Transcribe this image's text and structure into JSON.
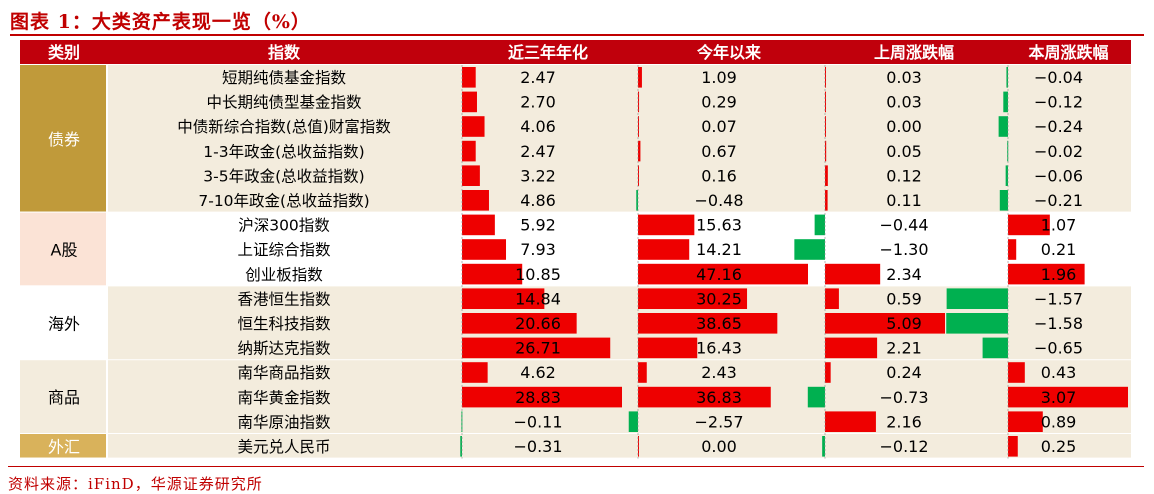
{
  "title": "图表 1：大类资产表现一览（%）",
  "source": "资料来源：iFinD，华源证券研究所",
  "colors": {
    "header_bg": "#c0000c",
    "header_text": "#ffffff",
    "positive": "#ee0000",
    "negative": "#00b050",
    "band_tan": "#f3ecdd",
    "cat_gold": "#c09a3a",
    "cat_pink": "#fbe3d6",
    "cat_fx": "#d9b25b",
    "text": "#000000"
  },
  "chart_data": {
    "type": "table",
    "columns": [
      "类别",
      "指数",
      "近三年年化",
      "今年以来",
      "上周涨跌幅",
      "本周涨跌幅"
    ],
    "groups": [
      {
        "category": "债券",
        "rows": 6
      },
      {
        "category": "A股",
        "rows": 3
      },
      {
        "category": "海外",
        "rows": 3
      },
      {
        "category": "商品",
        "rows": 3
      },
      {
        "category": "外汇",
        "rows": 1
      }
    ],
    "rows": [
      {
        "index": "短期纯债基金指数",
        "values": [
          "2.47",
          "1.09",
          "0.03",
          "−0.04"
        ]
      },
      {
        "index": "中长期纯债型基金指数",
        "values": [
          "2.70",
          "0.29",
          "0.03",
          "−0.12"
        ]
      },
      {
        "index": "中债新综合指数(总值)财富指数",
        "values": [
          "4.06",
          "0.07",
          "0.00",
          "−0.24"
        ]
      },
      {
        "index": "1-3年政金(总收益指数)",
        "values": [
          "2.47",
          "0.67",
          "0.05",
          "−0.02"
        ]
      },
      {
        "index": "3-5年政金(总收益指数)",
        "values": [
          "3.22",
          "0.16",
          "0.12",
          "−0.06"
        ]
      },
      {
        "index": "7-10年政金(总收益指数)",
        "values": [
          "4.86",
          "−0.48",
          "0.11",
          "−0.21"
        ]
      },
      {
        "index": "沪深300指数",
        "values": [
          "5.92",
          "15.63",
          "−0.44",
          "1.07"
        ]
      },
      {
        "index": "上证综合指数",
        "values": [
          "7.93",
          "14.21",
          "−1.30",
          "0.21"
        ]
      },
      {
        "index": "创业板指数",
        "values": [
          "10.85",
          "47.16",
          "2.34",
          "1.96"
        ]
      },
      {
        "index": "香港恒生指数",
        "values": [
          "14.84",
          "30.25",
          "0.59",
          "−1.57"
        ]
      },
      {
        "index": "恒生科技指数",
        "values": [
          "20.66",
          "38.65",
          "5.09",
          "−1.58"
        ]
      },
      {
        "index": "纳斯达克指数",
        "values": [
          "26.71",
          "16.43",
          "2.21",
          "−0.65"
        ]
      },
      {
        "index": "南华商品指数",
        "values": [
          "4.62",
          "2.43",
          "0.24",
          "0.43"
        ]
      },
      {
        "index": "南华黄金指数",
        "values": [
          "28.83",
          "36.83",
          "−0.73",
          "3.07"
        ]
      },
      {
        "index": "南华原油指数",
        "values": [
          "−0.11",
          "−2.57",
          "2.16",
          "0.89"
        ]
      },
      {
        "index": "美元兑人民币",
        "values": [
          "−0.31",
          "0.00",
          "−0.12",
          "0.25"
        ]
      }
    ],
    "bar_scale_max": [
      28.83,
      47.16,
      5.09,
      3.07
    ]
  }
}
